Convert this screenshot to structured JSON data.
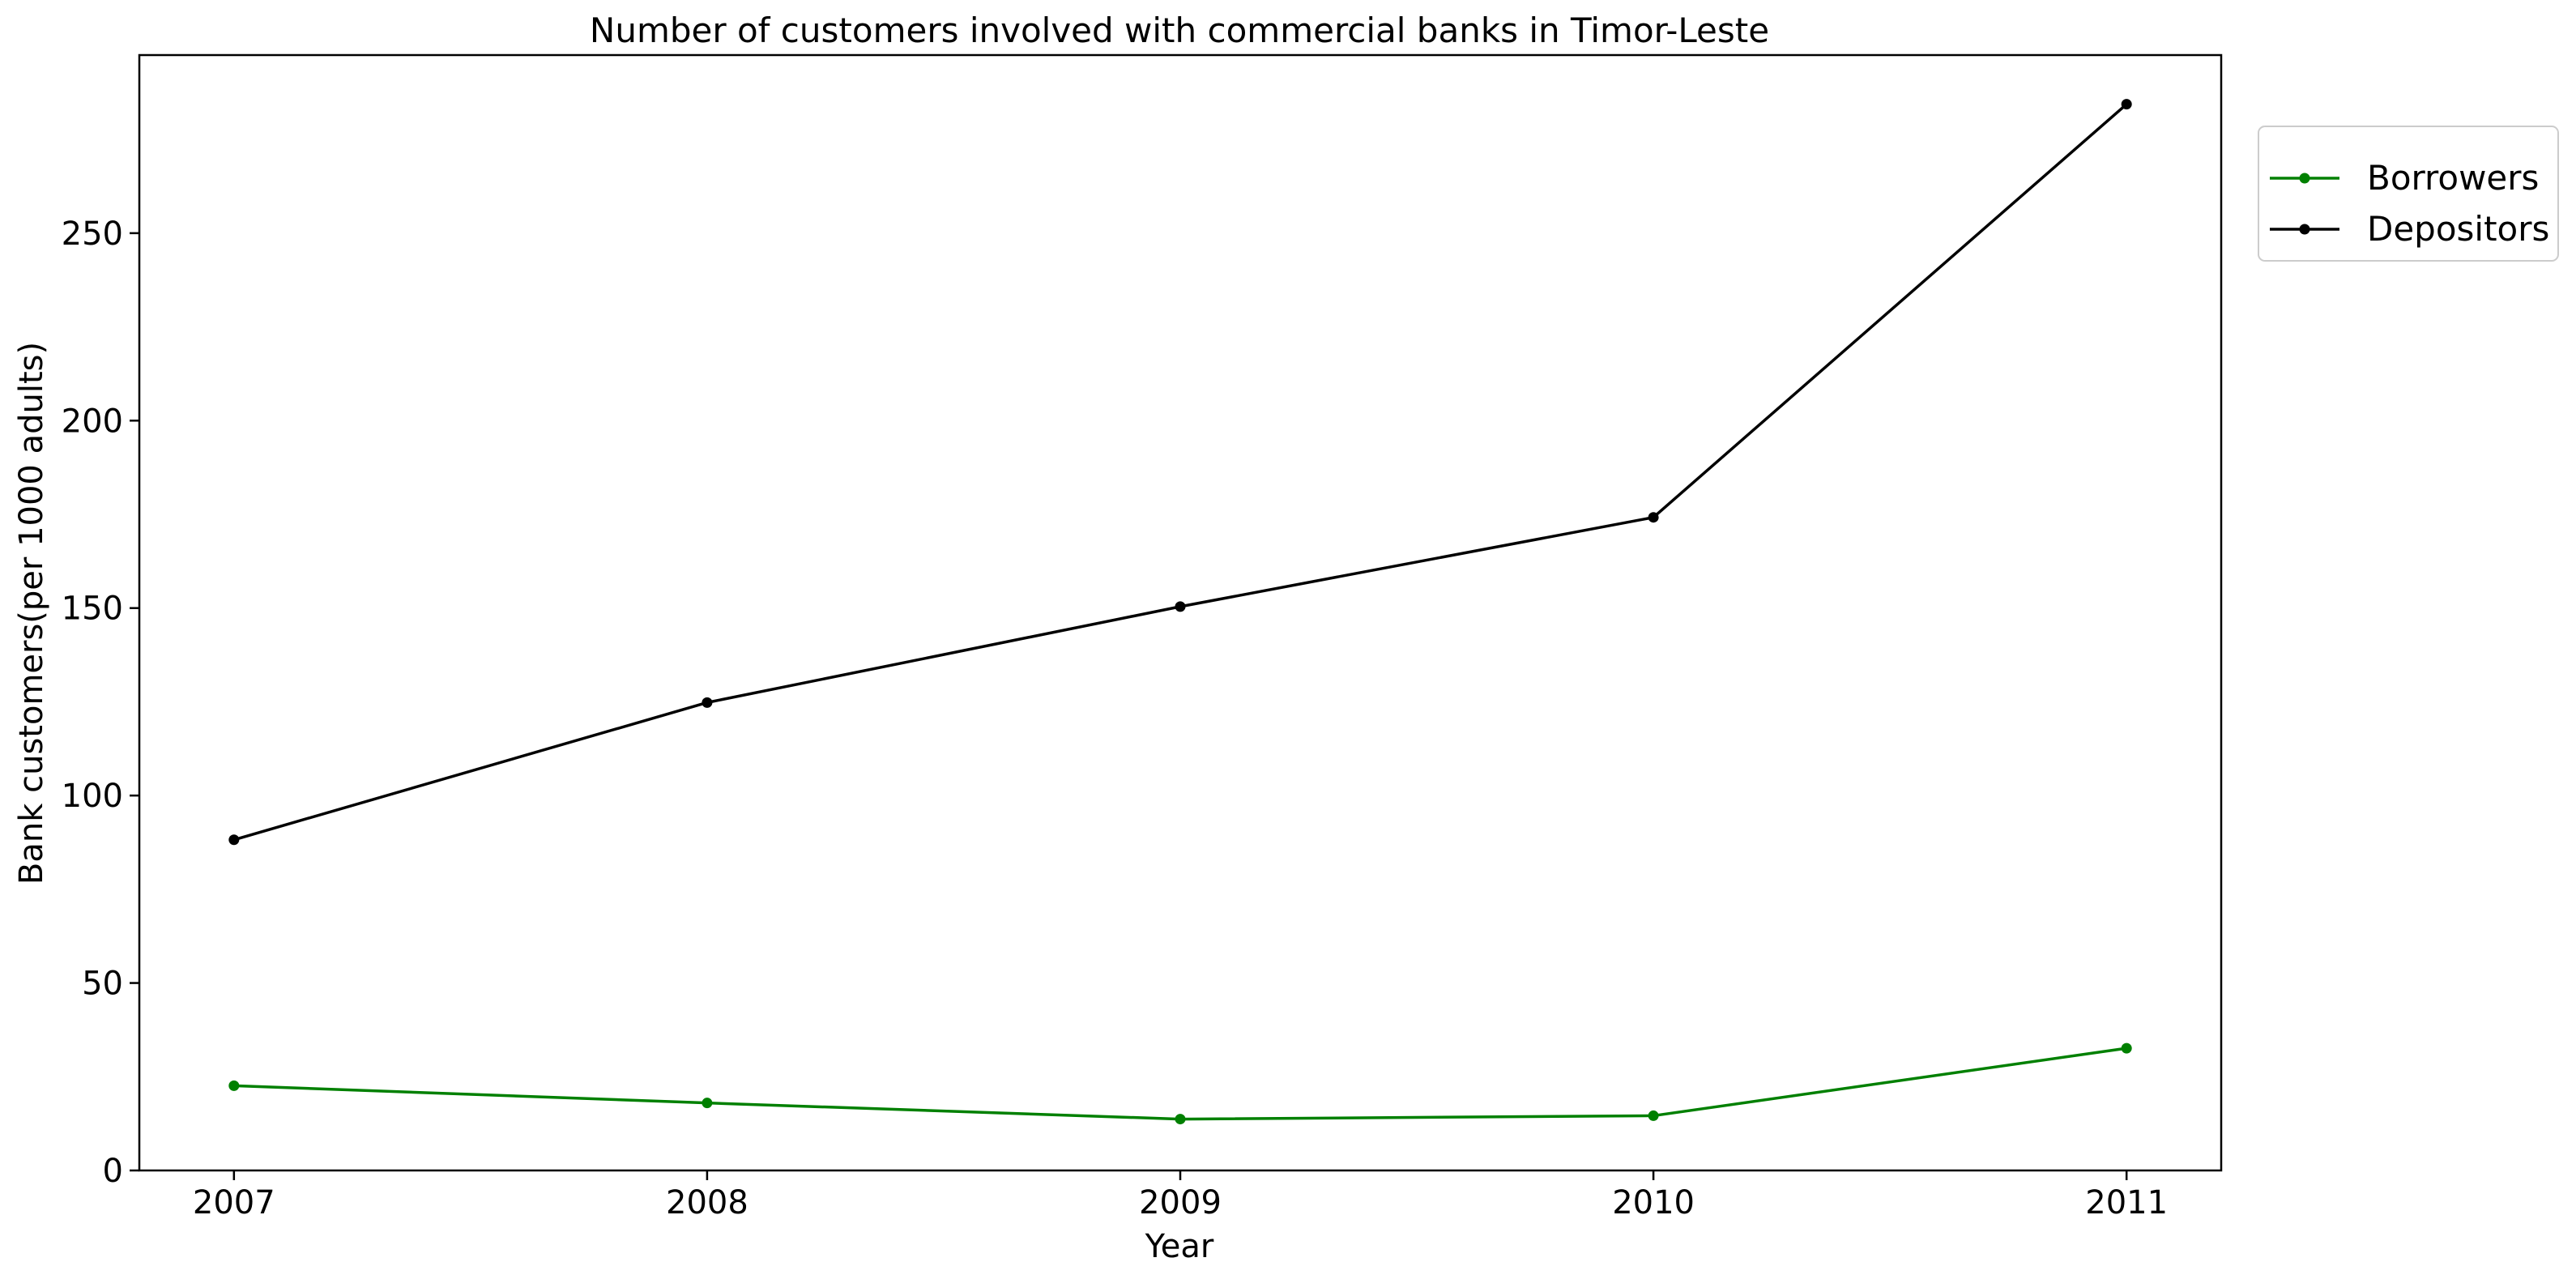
{
  "chart_data": {
    "type": "line",
    "title": "Number of customers involved with commercial banks in Timor-Leste",
    "xlabel": "Year",
    "ylabel": "Bank customers(per 1000 adults)",
    "x": [
      "2007",
      "2008",
      "2009",
      "2010",
      "2011"
    ],
    "xlim": [
      2006.8,
      2011.2
    ],
    "ylim": [
      0,
      297.5
    ],
    "yticks": [
      0,
      50,
      100,
      150,
      200,
      250
    ],
    "grid": false,
    "legend_position": "upper right, outside plot area",
    "series": [
      {
        "name": "Borrowers",
        "color": "#008000",
        "marker": "dot",
        "values": [
          22.6,
          18.0,
          13.7,
          14.6,
          32.6
        ]
      },
      {
        "name": "Depositors",
        "color": "#000000",
        "marker": "dot",
        "values": [
          88.2,
          124.8,
          150.4,
          174.2,
          284.4
        ]
      }
    ]
  }
}
